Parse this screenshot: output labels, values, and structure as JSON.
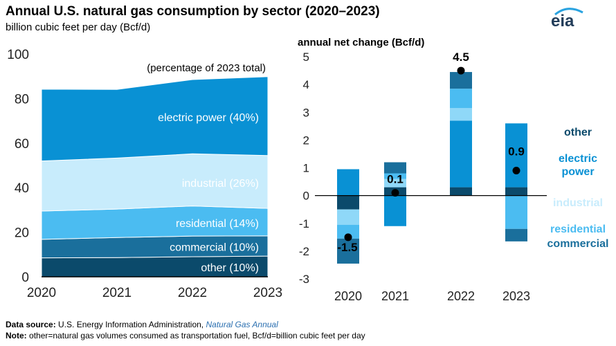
{
  "header": {
    "title": "Annual U.S. natural gas consumption by sector (2020–2023)",
    "subtitle": "billion cubic feet per day (Bcf/d)",
    "logo_text": "eia"
  },
  "footer": {
    "source_label": "Data source:",
    "source_text": "U.S. Energy Information Administration,",
    "source_link": "Natural Gas Annual",
    "note_label": "Note:",
    "note_text": "other=natural gas volumes consumed as transportation fuel, Bcf/d=billion cubic feet per day"
  },
  "colors": {
    "other": "#0b4a6b",
    "commercial": "#1a6f9c",
    "residential": "#4bbcf1",
    "industrial": "#c8ecfc",
    "electric_power": "#0991d4",
    "industrial_bar": "#8fd8f8",
    "point": "#000000",
    "axis": "#000000"
  },
  "chart_data": [
    {
      "type": "area",
      "stacked": true,
      "annotation": "(percentage of 2023 total)",
      "x": [
        2020,
        2021,
        2022,
        2023
      ],
      "ylim": [
        0,
        100
      ],
      "yticks": [
        0,
        20,
        40,
        60,
        80,
        100
      ],
      "series": [
        {
          "name": "other",
          "label": "other (10%)",
          "values": [
            8.5,
            8.6,
            9.0,
            9.3
          ]
        },
        {
          "name": "commercial",
          "label": "commercial (10%)",
          "values": [
            8.3,
            9.0,
            9.3,
            9.1
          ]
        },
        {
          "name": "residential",
          "label": "residential (14%)",
          "values": [
            12.7,
            12.8,
            13.5,
            12.3
          ]
        },
        {
          "name": "industrial",
          "label": "industrial (26%)",
          "values": [
            22.5,
            22.9,
            23.4,
            23.7
          ]
        },
        {
          "name": "electric power",
          "label": "electric power (40%)",
          "values": [
            32.2,
            30.8,
            33.3,
            35.4
          ]
        }
      ]
    },
    {
      "type": "bar",
      "stacked": true,
      "ylabel": "annual net change (Bcf/d)",
      "categories": [
        "2020",
        "2021",
        "2022",
        "2023"
      ],
      "ylim": [
        -3,
        5
      ],
      "yticks": [
        -3,
        -2,
        -1,
        0,
        1,
        2,
        3,
        4,
        5
      ],
      "series": [
        {
          "name": "other",
          "values": [
            -0.5,
            0.3,
            0.3,
            0.3
          ]
        },
        {
          "name": "electric power",
          "values": [
            0.95,
            -1.1,
            2.4,
            2.3
          ]
        },
        {
          "name": "industrial",
          "values": [
            -0.55,
            0.3,
            0.45,
            0.0
          ]
        },
        {
          "name": "residential",
          "values": [
            -0.5,
            0.2,
            0.7,
            -1.2
          ]
        },
        {
          "name": "commercial",
          "values": [
            -0.9,
            0.4,
            0.6,
            -0.45
          ]
        }
      ],
      "net": [
        -1.5,
        0.1,
        4.5,
        0.9
      ],
      "net_labels": [
        "-1.5",
        "0.1",
        "4.5",
        "0.9"
      ],
      "legend": [
        "other",
        "electric\npower",
        "industrial",
        "residential",
        "commercial"
      ]
    }
  ]
}
